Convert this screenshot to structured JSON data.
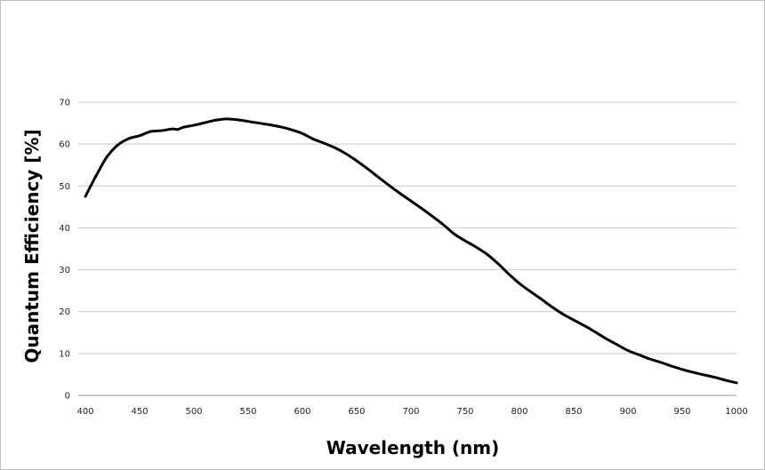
{
  "chart_data": {
    "type": "line",
    "title": "",
    "xlabel": "Wavelength (nm)",
    "ylabel": "Quantum Efficiency [%]",
    "xlim": [
      400,
      1000
    ],
    "ylim": [
      0,
      70
    ],
    "x_ticks": [
      "400",
      "450",
      "500",
      "550",
      "600",
      "650",
      "700",
      "750",
      "800",
      "850",
      "900",
      "950",
      "1000"
    ],
    "y_ticks": [
      "0",
      "10",
      "20",
      "30",
      "40",
      "50",
      "60",
      "70"
    ],
    "grid": "horizontal",
    "legend": "none",
    "line_color": "#000000",
    "series": [
      {
        "x": [
          400,
          410,
          420,
          430,
          440,
          450,
          460,
          470,
          480,
          485,
          490,
          500,
          510,
          520,
          530,
          540,
          550,
          560,
          570,
          580,
          590,
          600,
          610,
          620,
          630,
          640,
          650,
          660,
          670,
          680,
          690,
          700,
          710,
          720,
          730,
          740,
          750,
          760,
          770,
          780,
          790,
          800,
          810,
          820,
          830,
          840,
          850,
          860,
          870,
          880,
          890,
          900,
          910,
          920,
          930,
          940,
          950,
          960,
          970,
          980,
          990,
          1000
        ],
        "values": [
          47.5,
          52.5,
          57,
          59.8,
          61.3,
          62,
          63,
          63.2,
          63.6,
          63.5,
          64,
          64.5,
          65.1,
          65.7,
          66,
          65.8,
          65.4,
          65,
          64.6,
          64.1,
          63.4,
          62.5,
          61.2,
          60.2,
          59.1,
          57.7,
          56,
          54.1,
          52.1,
          50.1,
          48.2,
          46.4,
          44.6,
          42.7,
          40.7,
          38.5,
          36.9,
          35.4,
          33.7,
          31.5,
          29,
          26.7,
          24.8,
          23,
          21.1,
          19.4,
          18,
          16.6,
          15.1,
          13.5,
          12.1,
          10.7,
          9.7,
          8.7,
          7.9,
          7,
          6.2,
          5.5,
          4.9,
          4.3,
          3.6,
          3
        ]
      }
    ]
  }
}
